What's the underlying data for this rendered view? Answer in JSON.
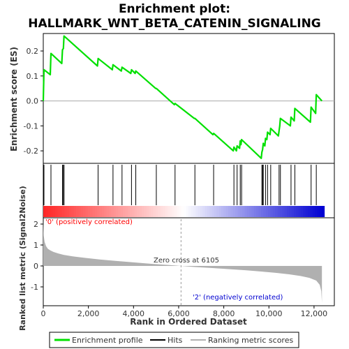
{
  "title_line1": "Enrichment plot:",
  "title_line2": "HALLMARK_WNT_BETA_CATENIN_SIGNALING",
  "colors": {
    "profile": "#00e000",
    "hits": "#000000",
    "metric": "#b0b0b0",
    "pos_label": "#ff0000",
    "neg_label": "#0000d0"
  },
  "chart_data": [
    {
      "type": "line",
      "panel": "enrichment",
      "ylabel": "Enrichment score (ES)",
      "ylim": [
        -0.25,
        0.27
      ],
      "yticks": [
        "0.2",
        "0.1",
        "0.0",
        "-0.1",
        "-0.2"
      ],
      "ytick_values": [
        0.2,
        0.1,
        0.0,
        -0.1,
        -0.2
      ],
      "x": [
        0,
        30,
        310,
        340,
        820,
        850,
        890,
        920,
        2400,
        2430,
        3060,
        3090,
        3460,
        3490,
        3880,
        3910,
        4070,
        4100,
        4980,
        5010,
        5810,
        5840,
        6690,
        6720,
        7520,
        7550,
        8420,
        8450,
        8560,
        8590,
        8700,
        8730,
        8760,
        8790,
        9660,
        9690,
        9720,
        9750,
        9820,
        9850,
        9910,
        9940,
        10050,
        10080,
        10420,
        10450,
        10480,
        10510,
        10950,
        10980,
        11120,
        11150,
        11840,
        11870,
        12070,
        12100,
        12350
      ],
      "y": [
        0.0,
        0.125,
        0.105,
        0.19,
        0.15,
        0.205,
        0.21,
        0.26,
        0.14,
        0.17,
        0.125,
        0.145,
        0.12,
        0.135,
        0.11,
        0.125,
        0.11,
        0.12,
        0.05,
        0.05,
        -0.015,
        -0.01,
        -0.07,
        -0.07,
        -0.135,
        -0.13,
        -0.2,
        -0.185,
        -0.2,
        -0.18,
        -0.19,
        -0.16,
        -0.175,
        -0.155,
        -0.23,
        -0.205,
        -0.195,
        -0.17,
        -0.18,
        -0.15,
        -0.155,
        -0.125,
        -0.135,
        -0.11,
        -0.14,
        -0.12,
        -0.1,
        -0.07,
        -0.1,
        -0.065,
        -0.08,
        -0.03,
        -0.085,
        -0.025,
        -0.05,
        0.025,
        0.0
      ]
    },
    {
      "type": "hits",
      "panel": "hits",
      "positions": [
        30,
        340,
        850,
        890,
        920,
        2430,
        3090,
        3490,
        3910,
        4100,
        5010,
        5840,
        6720,
        7550,
        8450,
        8590,
        8730,
        8790,
        9690,
        9720,
        9750,
        9850,
        9940,
        10080,
        10450,
        10510,
        10980,
        11150,
        11870,
        12100
      ]
    },
    {
      "type": "area",
      "panel": "ranked_metric",
      "ylabel": "Ranked list metric (Signal2Noise)",
      "xlabel": "Rank in Ordered Dataset",
      "xlim": [
        0,
        12900
      ],
      "ylim": [
        -1.9,
        2.3
      ],
      "yticks": [
        "2",
        "1",
        "0",
        "-1"
      ],
      "ytick_values": [
        2,
        1,
        0,
        -1
      ],
      "xticks": [
        "0",
        "2,000",
        "4,000",
        "6,000",
        "8,000",
        "10,000",
        "12,000"
      ],
      "xtick_values": [
        0,
        2000,
        4000,
        6000,
        8000,
        10000,
        12000
      ],
      "x": [
        0,
        20,
        60,
        120,
        200,
        300,
        450,
        650,
        900,
        1300,
        1800,
        2500,
        3200,
        4000,
        4800,
        5600,
        6105,
        6700,
        7500,
        8300,
        9000,
        9700,
        10300,
        10900,
        11400,
        11800,
        12100,
        12250,
        12320,
        12350
      ],
      "y": [
        2.2,
        1.45,
        1.15,
        0.95,
        0.82,
        0.75,
        0.67,
        0.6,
        0.53,
        0.46,
        0.39,
        0.31,
        0.24,
        0.17,
        0.1,
        0.04,
        0.0,
        -0.05,
        -0.1,
        -0.16,
        -0.21,
        -0.27,
        -0.33,
        -0.4,
        -0.48,
        -0.57,
        -0.7,
        -0.9,
        -1.2,
        -1.75
      ],
      "zero_cross_label": "Zero cross at 6105",
      "zero_cross_x": 6105,
      "pos_label": "'0' (positively correlated)",
      "neg_label": "'2' (negatively correlated)"
    }
  ],
  "legend": {
    "items": [
      {
        "label": "Enrichment profile",
        "color": "#00e000",
        "kind": "line"
      },
      {
        "label": "Hits",
        "color": "#000000",
        "kind": "line"
      },
      {
        "label": "Ranking metric scores",
        "color": "#b0b0b0",
        "kind": "line"
      }
    ]
  }
}
